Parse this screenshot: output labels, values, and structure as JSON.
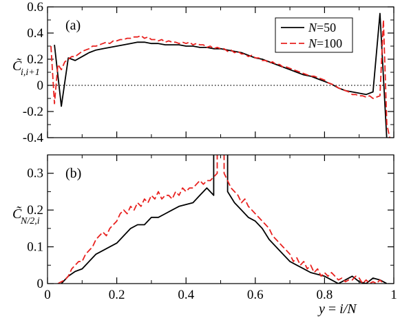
{
  "chart_data": [
    {
      "type": "line",
      "panel_label": "(a)",
      "ylabel_main": "C̃",
      "ylabel_sub": "i,i+1",
      "xlim": [
        0,
        1
      ],
      "ylim": [
        -0.4,
        0.6
      ],
      "yticks": [
        "-0.4",
        "-0.2",
        "0",
        "0.2",
        "0.4",
        "0.6"
      ],
      "ytick_values": [
        -0.4,
        -0.2,
        0,
        0.2,
        0.4,
        0.6
      ],
      "zero_line": "dotted",
      "legend": {
        "position": "top-right",
        "entries": [
          {
            "italic": "N",
            "rest": "=50"
          },
          {
            "italic": "N",
            "rest": "=100"
          }
        ]
      },
      "series": [
        {
          "name": "N=50",
          "color": "#000000",
          "style": "solid",
          "x": [
            0.02,
            0.04,
            0.06,
            0.08,
            0.1,
            0.12,
            0.14,
            0.16,
            0.18,
            0.2,
            0.22,
            0.24,
            0.26,
            0.28,
            0.3,
            0.32,
            0.34,
            0.36,
            0.38,
            0.4,
            0.42,
            0.44,
            0.46,
            0.48,
            0.5,
            0.52,
            0.54,
            0.56,
            0.58,
            0.6,
            0.62,
            0.64,
            0.66,
            0.68,
            0.7,
            0.72,
            0.74,
            0.76,
            0.78,
            0.8,
            0.82,
            0.84,
            0.86,
            0.88,
            0.9,
            0.92,
            0.94,
            0.96,
            0.98
          ],
          "y": [
            0.31,
            -0.16,
            0.21,
            0.19,
            0.22,
            0.25,
            0.27,
            0.28,
            0.29,
            0.3,
            0.31,
            0.32,
            0.33,
            0.33,
            0.32,
            0.32,
            0.31,
            0.31,
            0.31,
            0.3,
            0.3,
            0.29,
            0.29,
            0.28,
            0.28,
            0.27,
            0.26,
            0.25,
            0.23,
            0.21,
            0.2,
            0.18,
            0.16,
            0.14,
            0.12,
            0.1,
            0.08,
            0.07,
            0.05,
            0.03,
            0.01,
            -0.02,
            -0.04,
            -0.05,
            -0.06,
            -0.07,
            -0.05,
            0.55,
            -0.42
          ]
        },
        {
          "name": "N=100",
          "color": "#e8211f",
          "style": "dashed",
          "x": [
            0.01,
            0.02,
            0.03,
            0.04,
            0.05,
            0.06,
            0.07,
            0.08,
            0.09,
            0.1,
            0.11,
            0.12,
            0.13,
            0.14,
            0.15,
            0.16,
            0.17,
            0.18,
            0.19,
            0.2,
            0.21,
            0.22,
            0.23,
            0.24,
            0.25,
            0.26,
            0.27,
            0.28,
            0.29,
            0.3,
            0.31,
            0.32,
            0.33,
            0.34,
            0.35,
            0.36,
            0.37,
            0.38,
            0.39,
            0.4,
            0.41,
            0.42,
            0.43,
            0.44,
            0.45,
            0.46,
            0.47,
            0.48,
            0.49,
            0.5,
            0.51,
            0.52,
            0.53,
            0.54,
            0.55,
            0.56,
            0.57,
            0.58,
            0.59,
            0.6,
            0.61,
            0.62,
            0.63,
            0.64,
            0.65,
            0.66,
            0.67,
            0.68,
            0.69,
            0.7,
            0.71,
            0.72,
            0.73,
            0.74,
            0.75,
            0.76,
            0.77,
            0.78,
            0.79,
            0.8,
            0.81,
            0.82,
            0.83,
            0.84,
            0.85,
            0.86,
            0.87,
            0.88,
            0.89,
            0.9,
            0.91,
            0.92,
            0.93,
            0.94,
            0.95,
            0.96,
            0.97,
            0.98,
            0.99
          ],
          "y": [
            0.3,
            -0.14,
            0.16,
            0.12,
            0.18,
            0.2,
            0.22,
            0.22,
            0.24,
            0.26,
            0.27,
            0.28,
            0.3,
            0.3,
            0.31,
            0.32,
            0.33,
            0.32,
            0.34,
            0.34,
            0.35,
            0.35,
            0.36,
            0.36,
            0.37,
            0.37,
            0.38,
            0.36,
            0.37,
            0.35,
            0.35,
            0.34,
            0.35,
            0.33,
            0.34,
            0.33,
            0.33,
            0.32,
            0.33,
            0.32,
            0.33,
            0.31,
            0.32,
            0.31,
            0.31,
            0.29,
            0.3,
            0.28,
            0.29,
            0.28,
            0.28,
            0.26,
            0.27,
            0.25,
            0.26,
            0.24,
            0.24,
            0.22,
            0.23,
            0.21,
            0.21,
            0.19,
            0.19,
            0.17,
            0.18,
            0.16,
            0.16,
            0.14,
            0.14,
            0.13,
            0.12,
            0.11,
            0.1,
            0.09,
            0.08,
            0.07,
            0.07,
            0.06,
            0.05,
            0.04,
            0.02,
            0.01,
            0.0,
            -0.02,
            -0.03,
            -0.04,
            -0.05,
            -0.07,
            -0.07,
            -0.08,
            -0.08,
            -0.09,
            -0.08,
            -0.1,
            -0.09,
            -0.08,
            0.5,
            -0.3,
            -0.42
          ]
        }
      ]
    },
    {
      "type": "line",
      "panel_label": "(b)",
      "ylabel_main": "C̃",
      "ylabel_sub": "N/2,i",
      "xlabel_italic": "y",
      "xlabel_mid": " = ",
      "xlabel_italic2": "i/N",
      "xlim": [
        0,
        1
      ],
      "ylim": [
        0,
        0.35
      ],
      "yticks": [
        "0",
        "0.1",
        "0.2",
        "0.3"
      ],
      "ytick_values": [
        0,
        0.1,
        0.2,
        0.3
      ],
      "xticks": [
        "0",
        "0.2",
        "0.4",
        "0.6",
        "0.8",
        "1"
      ],
      "xtick_values": [
        0,
        0.2,
        0.4,
        0.6,
        0.8,
        1
      ],
      "series": [
        {
          "name": "N=50",
          "color": "#000000",
          "style": "solid",
          "x": [
            0.04,
            0.06,
            0.08,
            0.1,
            0.12,
            0.14,
            0.16,
            0.18,
            0.2,
            0.22,
            0.24,
            0.26,
            0.28,
            0.3,
            0.32,
            0.34,
            0.36,
            0.38,
            0.4,
            0.42,
            0.44,
            0.46,
            0.48,
            0.48,
            0.5,
            0.52,
            0.52,
            0.54,
            0.56,
            0.58,
            0.6,
            0.62,
            0.64,
            0.66,
            0.68,
            0.7,
            0.72,
            0.74,
            0.76,
            0.78,
            0.8,
            0.82,
            0.84,
            0.86,
            0.88,
            0.9,
            0.92,
            0.94,
            0.96,
            0.98
          ],
          "y": [
            0.0,
            0.02,
            0.033,
            0.04,
            0.06,
            0.08,
            0.09,
            0.1,
            0.11,
            0.13,
            0.15,
            0.16,
            0.16,
            0.18,
            0.18,
            0.19,
            0.2,
            0.21,
            0.215,
            0.22,
            0.24,
            0.26,
            0.24,
            0.36,
            0.36,
            0.36,
            0.25,
            0.22,
            0.2,
            0.18,
            0.17,
            0.15,
            0.12,
            0.1,
            0.08,
            0.06,
            0.05,
            0.04,
            0.03,
            0.025,
            0.02,
            0.01,
            0.0,
            0.01,
            0.02,
            0.005,
            0.0,
            0.015,
            0.01,
            0.0
          ]
        },
        {
          "name": "N=100",
          "color": "#e8211f",
          "style": "dashed",
          "x": [
            0.03,
            0.04,
            0.05,
            0.06,
            0.07,
            0.08,
            0.09,
            0.1,
            0.11,
            0.12,
            0.13,
            0.14,
            0.15,
            0.16,
            0.17,
            0.18,
            0.19,
            0.2,
            0.21,
            0.22,
            0.23,
            0.24,
            0.25,
            0.26,
            0.27,
            0.28,
            0.29,
            0.3,
            0.31,
            0.32,
            0.33,
            0.34,
            0.35,
            0.36,
            0.37,
            0.38,
            0.39,
            0.4,
            0.41,
            0.42,
            0.43,
            0.44,
            0.45,
            0.46,
            0.47,
            0.48,
            0.49,
            0.49,
            0.5,
            0.51,
            0.51,
            0.52,
            0.53,
            0.54,
            0.55,
            0.56,
            0.57,
            0.58,
            0.59,
            0.6,
            0.61,
            0.62,
            0.63,
            0.64,
            0.65,
            0.66,
            0.67,
            0.68,
            0.69,
            0.7,
            0.71,
            0.72,
            0.73,
            0.74,
            0.75,
            0.76,
            0.77,
            0.78,
            0.79,
            0.8,
            0.81,
            0.82,
            0.83,
            0.84,
            0.85,
            0.86,
            0.87,
            0.88,
            0.89,
            0.9,
            0.91,
            0.92,
            0.93,
            0.94,
            0.95,
            0.96,
            0.97
          ],
          "y": [
            0.0,
            0.005,
            0.01,
            0.02,
            0.04,
            0.05,
            0.06,
            0.06,
            0.08,
            0.09,
            0.1,
            0.12,
            0.13,
            0.14,
            0.13,
            0.15,
            0.16,
            0.17,
            0.19,
            0.2,
            0.19,
            0.21,
            0.2,
            0.22,
            0.21,
            0.23,
            0.22,
            0.24,
            0.23,
            0.25,
            0.23,
            0.24,
            0.24,
            0.23,
            0.25,
            0.24,
            0.26,
            0.25,
            0.26,
            0.26,
            0.27,
            0.28,
            0.27,
            0.28,
            0.28,
            0.29,
            0.3,
            0.36,
            0.36,
            0.36,
            0.3,
            0.28,
            0.26,
            0.25,
            0.24,
            0.22,
            0.23,
            0.21,
            0.2,
            0.19,
            0.18,
            0.17,
            0.16,
            0.15,
            0.13,
            0.12,
            0.11,
            0.1,
            0.09,
            0.08,
            0.06,
            0.07,
            0.05,
            0.06,
            0.04,
            0.05,
            0.03,
            0.04,
            0.02,
            0.03,
            0.02,
            0.03,
            0.02,
            0.01,
            0.015,
            0.005,
            0.01,
            0.01,
            0.02,
            0.015,
            0.0,
            0.01,
            0.0,
            0.005,
            0.0,
            0.01,
            0.0
          ]
        }
      ]
    }
  ]
}
